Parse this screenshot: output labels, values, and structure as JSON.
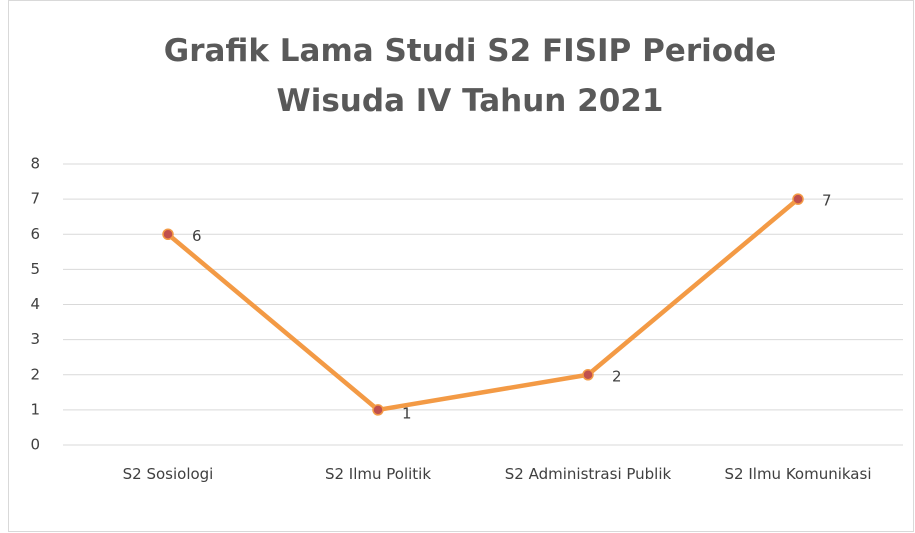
{
  "chart_data": {
    "type": "line",
    "title": "Grafik Lama Studi S2 FISIP Periode Wisuda IV Tahun 2021",
    "categories": [
      "S2 Sosiologi",
      "S2 Ilmu Politik",
      "S2 Administrasi Publik",
      "S2 Ilmu Komunikasi"
    ],
    "values": [
      6,
      1,
      2,
      7
    ],
    "color": "#f39a45",
    "marker_color": "#c0504d",
    "ylim": [
      0,
      8
    ],
    "yticks": [
      0,
      1,
      2,
      3,
      4,
      5,
      6,
      7,
      8
    ],
    "grid": true
  }
}
